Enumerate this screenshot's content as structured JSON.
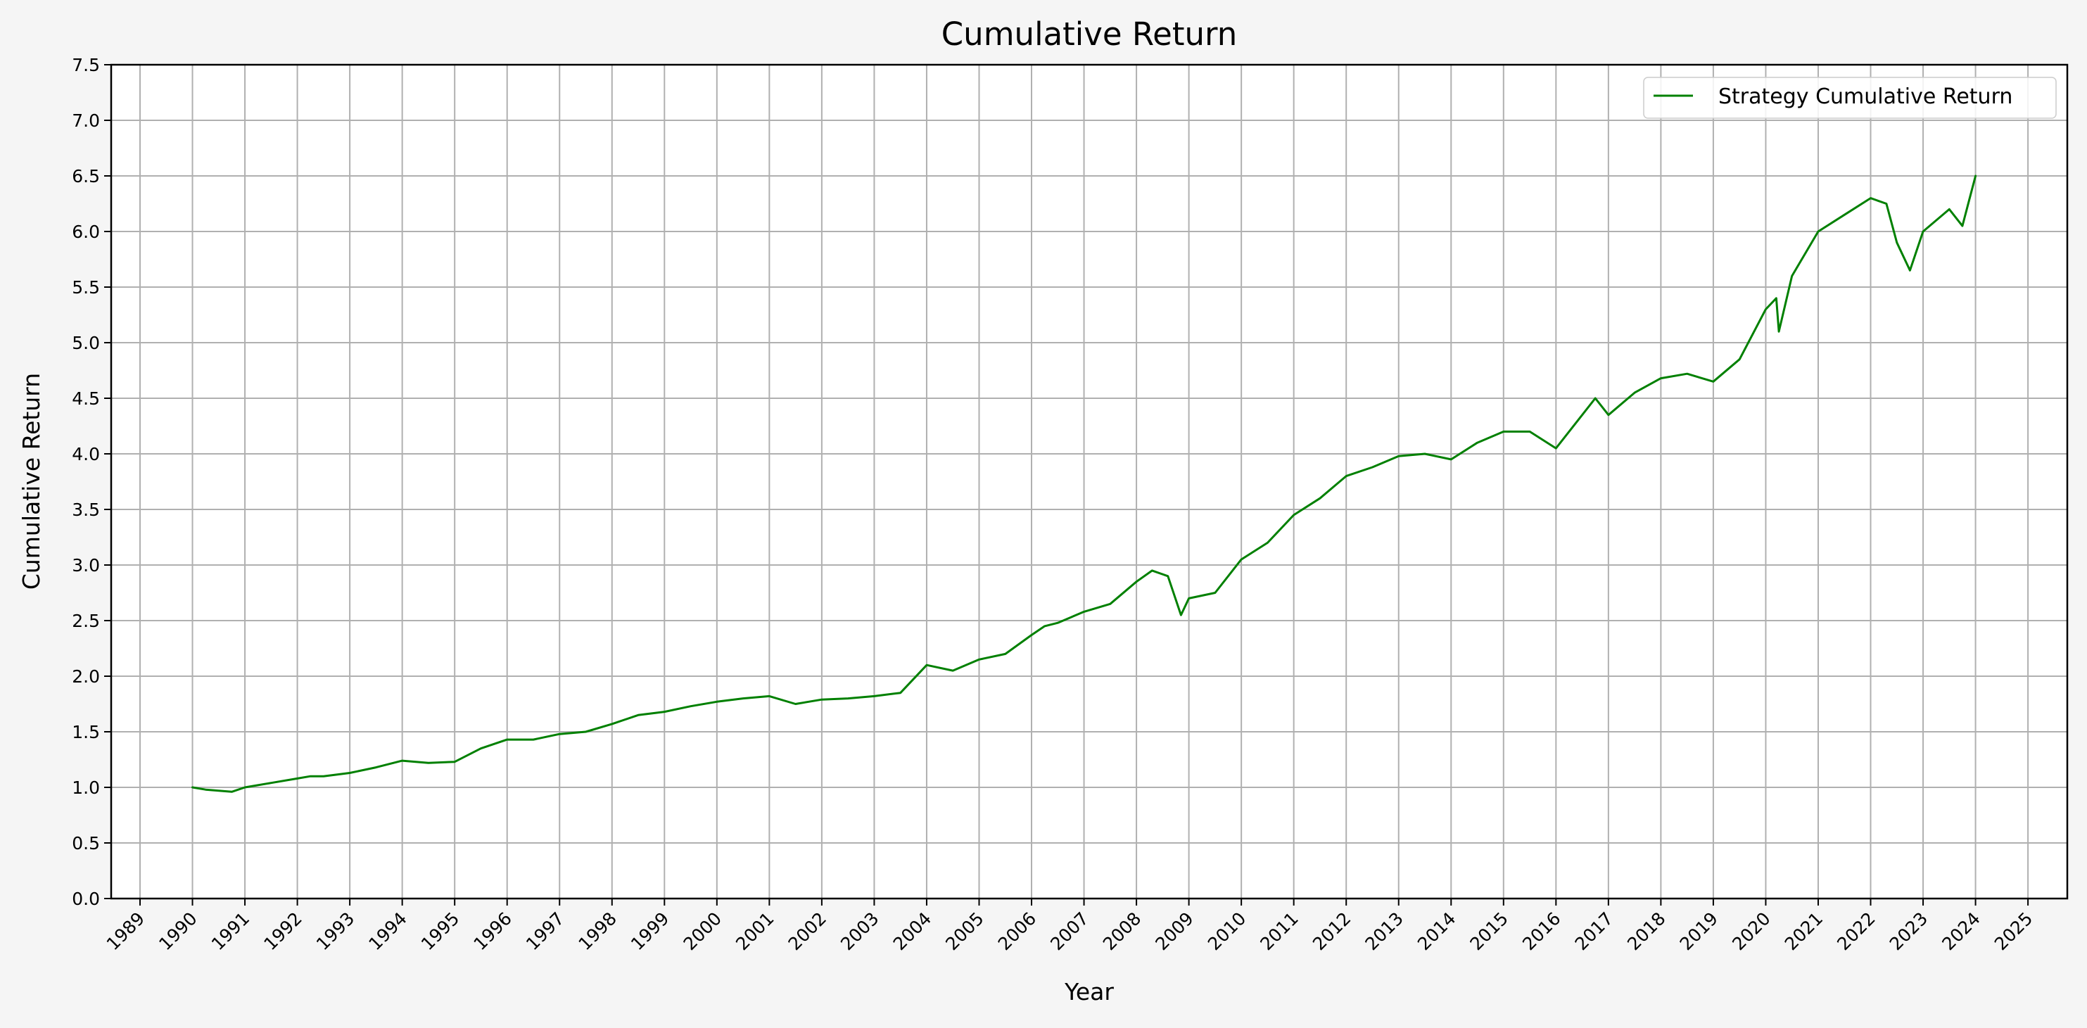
{
  "chart_data": {
    "type": "line",
    "title": "Cumulative Return",
    "xlabel": "Year",
    "ylabel": "Cumulative Return",
    "xlim": [
      1988.45,
      2025.75
    ],
    "ylim": [
      0,
      7.5
    ],
    "x_ticks": [
      "1989",
      "1990",
      "1991",
      "1992",
      "1993",
      "1994",
      "1995",
      "1996",
      "1997",
      "1998",
      "1999",
      "2000",
      "2001",
      "2002",
      "2003",
      "2004",
      "2005",
      "2006",
      "2007",
      "2008",
      "2009",
      "2010",
      "2011",
      "2012",
      "2013",
      "2014",
      "2015",
      "2016",
      "2017",
      "2018",
      "2019",
      "2020",
      "2021",
      "2022",
      "2023",
      "2024",
      "2025"
    ],
    "y_ticks": [
      "0.0",
      "0.5",
      "1.0",
      "1.5",
      "2.0",
      "2.5",
      "3.0",
      "3.5",
      "4.0",
      "4.5",
      "5.0",
      "5.5",
      "6.0",
      "6.5",
      "7.0",
      "7.5"
    ],
    "grid": true,
    "legend_position": "top-right",
    "series": [
      {
        "name": "Strategy Cumulative Return",
        "color": "#008000",
        "x": [
          1990.0,
          1990.25,
          1990.5,
          1990.75,
          1991.0,
          1991.5,
          1992.0,
          1992.25,
          1992.5,
          1993.0,
          1993.5,
          1994.0,
          1994.5,
          1995.0,
          1995.5,
          1996.0,
          1996.5,
          1997.0,
          1997.5,
          1998.0,
          1998.5,
          1999.0,
          1999.5,
          2000.0,
          2000.5,
          2001.0,
          2001.5,
          2002.0,
          2002.5,
          2003.0,
          2003.5,
          2004.0,
          2004.5,
          2005.0,
          2005.5,
          2006.0,
          2006.25,
          2006.5,
          2007.0,
          2007.5,
          2008.0,
          2008.3,
          2008.6,
          2008.85,
          2009.0,
          2009.5,
          2010.0,
          2010.5,
          2011.0,
          2011.5,
          2012.0,
          2012.5,
          2013.0,
          2013.5,
          2014.0,
          2014.5,
          2015.0,
          2015.5,
          2016.0,
          2016.5,
          2016.75,
          2017.0,
          2017.5,
          2018.0,
          2018.5,
          2019.0,
          2019.5,
          2020.0,
          2020.2,
          2020.25,
          2020.5,
          2021.0,
          2021.5,
          2022.0,
          2022.3,
          2022.5,
          2022.75,
          2023.0,
          2023.5,
          2023.75,
          2024.0
        ],
        "y": [
          1.0,
          0.98,
          0.97,
          0.96,
          1.0,
          1.04,
          1.08,
          1.1,
          1.1,
          1.13,
          1.18,
          1.24,
          1.22,
          1.23,
          1.35,
          1.43,
          1.43,
          1.48,
          1.5,
          1.57,
          1.65,
          1.68,
          1.73,
          1.77,
          1.8,
          1.82,
          1.75,
          1.79,
          1.8,
          1.82,
          1.85,
          2.1,
          2.05,
          2.15,
          2.2,
          2.37,
          2.45,
          2.48,
          2.58,
          2.65,
          2.85,
          2.95,
          2.9,
          2.55,
          2.7,
          2.75,
          3.05,
          3.2,
          3.45,
          3.6,
          3.8,
          3.88,
          3.98,
          4.0,
          3.95,
          4.1,
          4.2,
          4.2,
          4.05,
          4.35,
          4.5,
          4.35,
          4.55,
          4.68,
          4.72,
          4.65,
          4.85,
          5.3,
          5.4,
          5.1,
          5.6,
          6.0,
          6.15,
          6.3,
          6.25,
          5.9,
          5.65,
          6.0,
          6.2,
          6.05,
          6.5
        ]
      }
    ]
  }
}
